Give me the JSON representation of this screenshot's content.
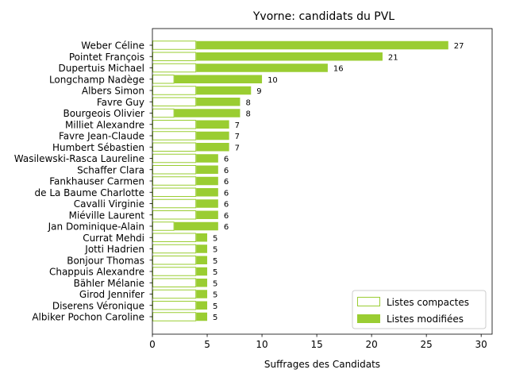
{
  "chart_data": {
    "type": "bar",
    "orientation": "horizontal",
    "stacked": true,
    "title": "Yvorne: candidats du PVL",
    "xlabel": "Suffrages des Candidats",
    "ylabel": "",
    "xlim": [
      0,
      31
    ],
    "xticks": [
      0,
      5,
      10,
      15,
      20,
      25,
      30
    ],
    "grid": false,
    "legend_position": "bottom-right",
    "categories": [
      "Weber Céline",
      "Pointet François",
      "Dupertuis Michael",
      "Longchamp Nadège",
      "Albers Simon",
      "Favre Guy",
      "Bourgeois Olivier",
      "Milliet Alexandre",
      "Favre Jean-Claude",
      "Humbert Sébastien",
      "Wasilewski-Rasca Laureline",
      "Schaffer Clara",
      "Fankhauser Carmen",
      "de La Baume Charlotte",
      "Cavalli Virginie",
      "Miéville Laurent",
      "Jan Dominique-Alain",
      "Currat Mehdi",
      "Jotti Hadrien",
      "Bonjour Thomas",
      "Chappuis Alexandre",
      "Bähler Mélanie",
      "Girod Jennifer",
      "Diserens Véronique",
      "Albiker Pochon Caroline"
    ],
    "series": [
      {
        "name": "Listes compactes",
        "color": "#9acd32",
        "style": "outline",
        "values": [
          4,
          4,
          4,
          2,
          4,
          4,
          2,
          4,
          4,
          4,
          4,
          4,
          4,
          4,
          4,
          4,
          2,
          4,
          4,
          4,
          4,
          4,
          4,
          4,
          4
        ]
      },
      {
        "name": "Listes modifiées",
        "color": "#9acd32",
        "style": "filled",
        "values": [
          23,
          17,
          12,
          8,
          5,
          4,
          6,
          3,
          3,
          3,
          2,
          2,
          2,
          2,
          2,
          2,
          4,
          1,
          1,
          1,
          1,
          1,
          1,
          1,
          1
        ]
      }
    ],
    "totals": [
      27,
      21,
      16,
      10,
      9,
      8,
      8,
      7,
      7,
      7,
      6,
      6,
      6,
      6,
      6,
      6,
      6,
      5,
      5,
      5,
      5,
      5,
      5,
      5,
      5
    ]
  }
}
